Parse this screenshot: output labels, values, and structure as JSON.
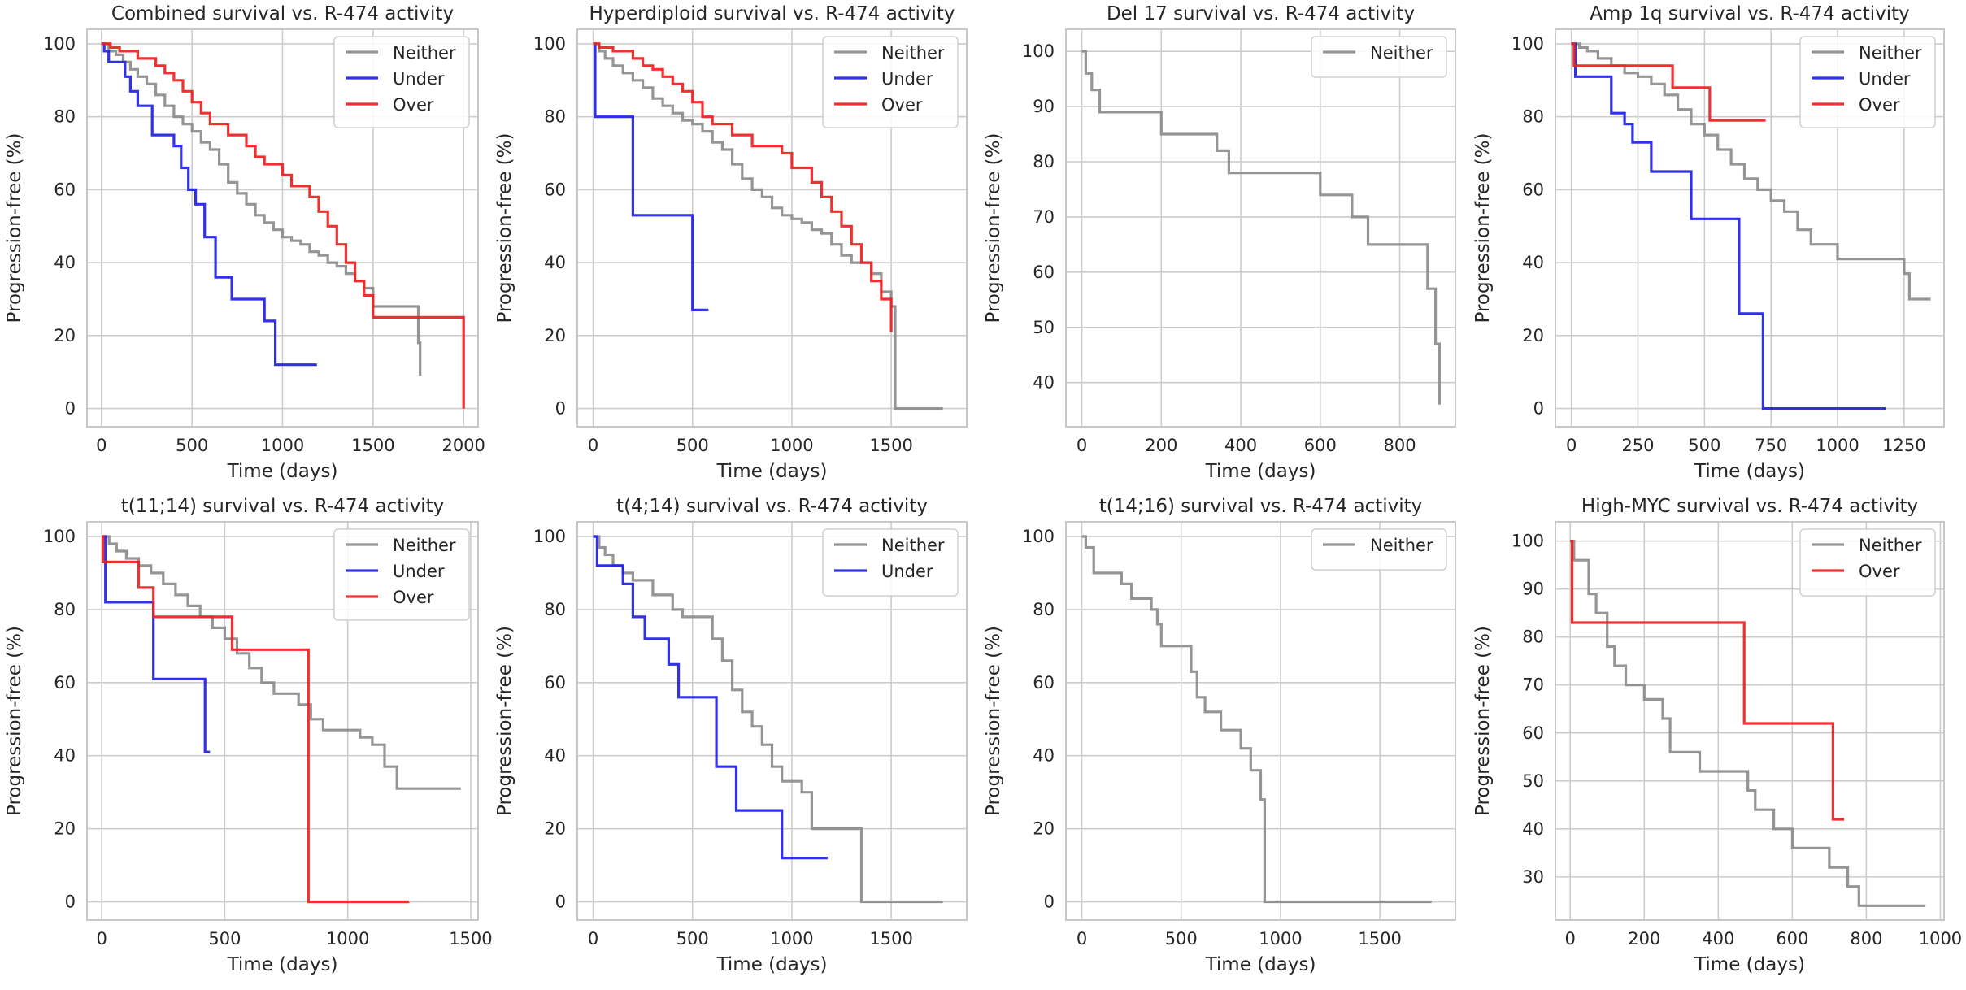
{
  "colors": {
    "neither": "#8c8c8c",
    "under": "#1f1fe6",
    "over": "#f01f1f",
    "grid": "#cccccc",
    "frame": "#c8c8c8"
  },
  "chart_data": [
    {
      "type": "line",
      "step": true,
      "title": "Combined survival vs. R-474 activity",
      "xlabel": "Time (days)",
      "ylabel": "Progression-free (%)",
      "xlim": [
        -80,
        2080
      ],
      "ylim": [
        -5,
        104
      ],
      "xticks": [
        0,
        500,
        1000,
        1500,
        2000
      ],
      "yticks": [
        0,
        20,
        40,
        60,
        80,
        100
      ],
      "legend": "upper right",
      "series": [
        {
          "name": "Neither",
          "color_key": "neither",
          "x": [
            0,
            40,
            80,
            120,
            160,
            200,
            250,
            300,
            350,
            400,
            450,
            500,
            550,
            600,
            650,
            700,
            750,
            800,
            850,
            900,
            950,
            1000,
            1050,
            1100,
            1150,
            1200,
            1250,
            1300,
            1350,
            1400,
            1450,
            1500,
            1750,
            1760
          ],
          "y": [
            100,
            98,
            97,
            95,
            93,
            91,
            89,
            86,
            83,
            80,
            78,
            76,
            73,
            71,
            67,
            62,
            59,
            56,
            53,
            51,
            49,
            47,
            46,
            45,
            43,
            42,
            40,
            39,
            37,
            35,
            33,
            28,
            18,
            9
          ]
        },
        {
          "name": "Under",
          "color_key": "under",
          "x": [
            0,
            15,
            40,
            130,
            160,
            200,
            280,
            400,
            440,
            480,
            520,
            570,
            630,
            720,
            900,
            960,
            1190
          ],
          "y": [
            100,
            98,
            95,
            91,
            87,
            83,
            75,
            72,
            66,
            60,
            56,
            47,
            36,
            30,
            24,
            12,
            12
          ]
        },
        {
          "name": "Over",
          "color_key": "over",
          "x": [
            0,
            50,
            100,
            200,
            300,
            350,
            400,
            450,
            500,
            550,
            600,
            650,
            700,
            800,
            850,
            900,
            1000,
            1050,
            1150,
            1200,
            1250,
            1300,
            1350,
            1400,
            1450,
            1500,
            2000
          ],
          "y": [
            100,
            99,
            98,
            96,
            94,
            92,
            90,
            87,
            84,
            81,
            78,
            78,
            75,
            72,
            69,
            67,
            64,
            61,
            58,
            54,
            50,
            45,
            40,
            35,
            31,
            25,
            0
          ]
        }
      ]
    },
    {
      "type": "line",
      "step": true,
      "title": "Hyperdiploid survival vs. R-474 activity",
      "xlabel": "Time (days)",
      "ylabel": "Progression-free (%)",
      "xlim": [
        -80,
        1880
      ],
      "ylim": [
        -5,
        104
      ],
      "xticks": [
        0,
        500,
        1000,
        1500
      ],
      "yticks": [
        0,
        20,
        40,
        60,
        80,
        100
      ],
      "legend": "upper right",
      "series": [
        {
          "name": "Neither",
          "color_key": "neither",
          "x": [
            0,
            30,
            60,
            100,
            150,
            200,
            250,
            300,
            350,
            400,
            450,
            500,
            550,
            600,
            650,
            700,
            750,
            800,
            850,
            900,
            950,
            1000,
            1050,
            1100,
            1150,
            1200,
            1250,
            1300,
            1400,
            1450,
            1500,
            1520,
            1760
          ],
          "y": [
            100,
            98,
            96,
            94,
            92,
            90,
            88,
            85,
            83,
            81,
            79,
            78,
            76,
            73,
            71,
            67,
            63,
            60,
            58,
            55,
            53,
            52,
            51,
            49,
            48,
            45,
            42,
            40,
            37,
            32,
            28,
            0,
            0
          ]
        },
        {
          "name": "Under",
          "color_key": "under",
          "x": [
            0,
            10,
            200,
            500,
            580
          ],
          "y": [
            100,
            80,
            53,
            27,
            27
          ]
        },
        {
          "name": "Over",
          "color_key": "over",
          "x": [
            0,
            30,
            100,
            200,
            250,
            300,
            350,
            400,
            450,
            500,
            550,
            600,
            700,
            800,
            950,
            1000,
            1100,
            1150,
            1200,
            1250,
            1300,
            1350,
            1400,
            1450,
            1500
          ],
          "y": [
            100,
            99,
            98,
            96,
            94,
            93,
            91,
            89,
            87,
            84,
            80,
            78,
            75,
            72,
            70,
            66,
            62,
            58,
            54,
            50,
            45,
            40,
            35,
            30,
            21
          ]
        }
      ]
    },
    {
      "type": "line",
      "step": true,
      "title": "Del 17 survival vs. R-474 activity",
      "xlabel": "Time (days)",
      "ylabel": "Progression-free (%)",
      "xlim": [
        -40,
        940
      ],
      "ylim": [
        32,
        104
      ],
      "xticks": [
        0,
        200,
        400,
        600,
        800
      ],
      "yticks": [
        40,
        50,
        60,
        70,
        80,
        90,
        100
      ],
      "legend": "upper right",
      "series": [
        {
          "name": "Neither",
          "color_key": "neither",
          "x": [
            0,
            10,
            25,
            45,
            200,
            340,
            370,
            580,
            600,
            680,
            720,
            870,
            890,
            900
          ],
          "y": [
            100,
            96,
            93,
            89,
            85,
            82,
            78,
            78,
            74,
            70,
            65,
            57,
            47,
            36
          ]
        }
      ]
    },
    {
      "type": "line",
      "step": true,
      "title": "Amp 1q survival vs. R-474 activity",
      "xlabel": "Time (days)",
      "ylabel": "Progression-free (%)",
      "xlim": [
        -60,
        1400
      ],
      "ylim": [
        -5,
        104
      ],
      "xticks": [
        0,
        250,
        500,
        750,
        1000,
        1250
      ],
      "yticks": [
        0,
        20,
        40,
        60,
        80,
        100
      ],
      "legend": "upper right",
      "series": [
        {
          "name": "Neither",
          "color_key": "neither",
          "x": [
            0,
            30,
            60,
            100,
            150,
            200,
            250,
            300,
            350,
            400,
            450,
            500,
            550,
            600,
            650,
            700,
            750,
            800,
            850,
            900,
            1000,
            1250,
            1270,
            1350
          ],
          "y": [
            100,
            99,
            98,
            96,
            94,
            92,
            91,
            89,
            86,
            82,
            78,
            75,
            71,
            67,
            63,
            60,
            57,
            54,
            49,
            45,
            41,
            37,
            30,
            30
          ]
        },
        {
          "name": "Under",
          "color_key": "under",
          "x": [
            0,
            15,
            150,
            200,
            230,
            300,
            450,
            630,
            720,
            1180
          ],
          "y": [
            100,
            91,
            81,
            78,
            73,
            65,
            52,
            26,
            0,
            0
          ]
        },
        {
          "name": "Over",
          "color_key": "over",
          "x": [
            0,
            10,
            380,
            520,
            730
          ],
          "y": [
            100,
            94,
            88,
            79,
            79
          ]
        }
      ]
    },
    {
      "type": "line",
      "step": true,
      "title": "t(11;14) survival vs. R-474 activity",
      "xlabel": "Time (days)",
      "ylabel": "Progression-free (%)",
      "xlim": [
        -60,
        1530
      ],
      "ylim": [
        -5,
        104
      ],
      "xticks": [
        0,
        500,
        1000,
        1500
      ],
      "yticks": [
        0,
        20,
        40,
        60,
        80,
        100
      ],
      "legend": "upper right",
      "series": [
        {
          "name": "Neither",
          "color_key": "neither",
          "x": [
            0,
            30,
            60,
            100,
            150,
            200,
            250,
            300,
            350,
            400,
            450,
            500,
            550,
            600,
            650,
            700,
            800,
            850,
            900,
            1000,
            1050,
            1100,
            1150,
            1200,
            1460
          ],
          "y": [
            100,
            98,
            96,
            94,
            92,
            90,
            87,
            84,
            81,
            78,
            75,
            72,
            68,
            64,
            60,
            57,
            54,
            50,
            47,
            47,
            45,
            43,
            37,
            31,
            31
          ]
        },
        {
          "name": "Under",
          "color_key": "under",
          "x": [
            0,
            15,
            210,
            420,
            440
          ],
          "y": [
            100,
            82,
            61,
            41,
            41
          ]
        },
        {
          "name": "Over",
          "color_key": "over",
          "x": [
            0,
            5,
            150,
            210,
            530,
            840,
            1250
          ],
          "y": [
            100,
            93,
            86,
            78,
            69,
            0,
            0
          ]
        }
      ]
    },
    {
      "type": "line",
      "step": true,
      "title": "t(4;14) survival vs. R-474 activity",
      "xlabel": "Time (days)",
      "ylabel": "Progression-free (%)",
      "xlim": [
        -80,
        1880
      ],
      "ylim": [
        -5,
        104
      ],
      "xticks": [
        0,
        500,
        1000,
        1500
      ],
      "yticks": [
        0,
        20,
        40,
        60,
        80,
        100
      ],
      "legend": "upper right",
      "series": [
        {
          "name": "Neither",
          "color_key": "neither",
          "x": [
            0,
            30,
            60,
            100,
            150,
            200,
            300,
            400,
            450,
            600,
            650,
            700,
            750,
            800,
            850,
            900,
            950,
            1050,
            1100,
            1350,
            1760
          ],
          "y": [
            100,
            97,
            95,
            92,
            90,
            88,
            84,
            80,
            78,
            72,
            66,
            58,
            52,
            48,
            43,
            37,
            33,
            30,
            20,
            0,
            0
          ]
        },
        {
          "name": "Under",
          "color_key": "under",
          "x": [
            0,
            20,
            150,
            200,
            260,
            380,
            430,
            620,
            720,
            950,
            1180
          ],
          "y": [
            100,
            92,
            87,
            78,
            72,
            65,
            56,
            37,
            25,
            12,
            12
          ]
        }
      ]
    },
    {
      "type": "line",
      "step": true,
      "title": "t(14;16) survival vs. R-474 activity",
      "xlabel": "Time (days)",
      "ylabel": "Progression-free (%)",
      "xlim": [
        -80,
        1880
      ],
      "ylim": [
        -5,
        104
      ],
      "xticks": [
        0,
        500,
        1000,
        1500
      ],
      "yticks": [
        0,
        20,
        40,
        60,
        80,
        100
      ],
      "legend": "upper right",
      "series": [
        {
          "name": "Neither",
          "color_key": "neither",
          "x": [
            0,
            20,
            60,
            200,
            250,
            350,
            380,
            400,
            550,
            580,
            620,
            700,
            800,
            850,
            900,
            920,
            1760
          ],
          "y": [
            100,
            97,
            90,
            87,
            83,
            80,
            76,
            70,
            63,
            56,
            52,
            47,
            42,
            36,
            28,
            0,
            0
          ]
        }
      ]
    },
    {
      "type": "line",
      "step": true,
      "title": "High-MYC survival vs. R-474 activity",
      "xlabel": "Time (days)",
      "ylabel": "Progression-free (%)",
      "xlim": [
        -40,
        1010
      ],
      "ylim": [
        21,
        104
      ],
      "xticks": [
        0,
        200,
        400,
        600,
        800,
        1000
      ],
      "yticks": [
        30,
        40,
        50,
        60,
        70,
        80,
        90,
        100
      ],
      "legend": "upper right",
      "series": [
        {
          "name": "Neither",
          "color_key": "neither",
          "x": [
            0,
            10,
            50,
            70,
            100,
            120,
            150,
            200,
            250,
            270,
            350,
            480,
            500,
            550,
            600,
            700,
            750,
            780,
            960
          ],
          "y": [
            100,
            96,
            89,
            85,
            78,
            74,
            70,
            67,
            63,
            56,
            52,
            48,
            44,
            40,
            36,
            32,
            28,
            24,
            24
          ]
        },
        {
          "name": "Over",
          "color_key": "over",
          "x": [
            0,
            5,
            470,
            710,
            740
          ],
          "y": [
            100,
            83,
            62,
            42,
            42
          ]
        }
      ]
    }
  ]
}
